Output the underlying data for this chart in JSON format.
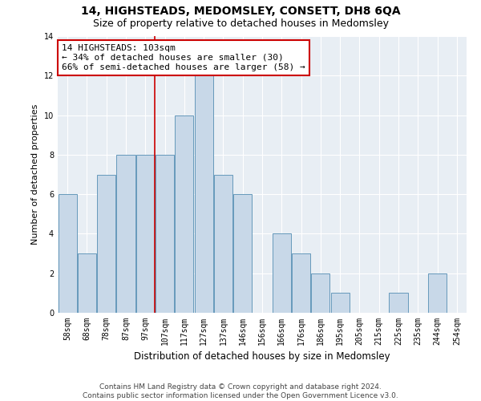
{
  "title": "14, HIGHSTEADS, MEDOMSLEY, CONSETT, DH8 6QA",
  "subtitle": "Size of property relative to detached houses in Medomsley",
  "xlabel": "Distribution of detached houses by size in Medomsley",
  "ylabel": "Number of detached properties",
  "bar_labels": [
    "58sqm",
    "68sqm",
    "78sqm",
    "87sqm",
    "97sqm",
    "107sqm",
    "117sqm",
    "127sqm",
    "137sqm",
    "146sqm",
    "156sqm",
    "166sqm",
    "176sqm",
    "186sqm",
    "195sqm",
    "205sqm",
    "215sqm",
    "225sqm",
    "235sqm",
    "244sqm",
    "254sqm"
  ],
  "bar_values": [
    6,
    3,
    7,
    8,
    8,
    8,
    10,
    12,
    7,
    6,
    0,
    4,
    3,
    2,
    1,
    0,
    0,
    1,
    0,
    2,
    0
  ],
  "bar_color": "#c8d8e8",
  "bar_edgecolor": "#6699bb",
  "annotation_box_text": "14 HIGHSTEADS: 103sqm\n← 34% of detached houses are smaller (30)\n66% of semi-detached houses are larger (58) →",
  "annotation_box_color": "#ffffff",
  "annotation_box_edgecolor": "#cc0000",
  "vline_color": "#cc0000",
  "vline_x": 4.5,
  "ylim": [
    0,
    14
  ],
  "yticks": [
    0,
    2,
    4,
    6,
    8,
    10,
    12,
    14
  ],
  "background_color": "#e8eef4",
  "footer_text": "Contains HM Land Registry data © Crown copyright and database right 2024.\nContains public sector information licensed under the Open Government Licence v3.0.",
  "title_fontsize": 10,
  "subtitle_fontsize": 9,
  "xlabel_fontsize": 8.5,
  "ylabel_fontsize": 8,
  "tick_fontsize": 7,
  "annotation_fontsize": 8,
  "footer_fontsize": 6.5
}
